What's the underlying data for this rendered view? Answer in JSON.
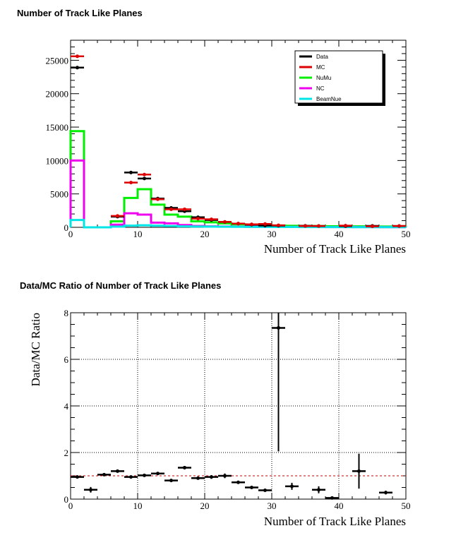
{
  "chart_data": [
    {
      "type": "histogram",
      "title": "Number of Track Like Planes",
      "xlabel": "Number of Track Like Planes",
      "ylabel": "",
      "xlim": [
        0,
        50
      ],
      "ylim": [
        0,
        28000
      ],
      "xticks": [
        0,
        10,
        20,
        30,
        40,
        50
      ],
      "yticks": [
        0,
        5000,
        10000,
        15000,
        20000,
        25000
      ],
      "grid": false,
      "legend_position": "top-right",
      "bin_width": 2,
      "step_series": [
        {
          "name": "NuMu",
          "color": "#00ee00",
          "values": [
            14400,
            0,
            0,
            900,
            4400,
            5700,
            3400,
            1900,
            1600,
            900,
            750,
            600,
            450,
            350,
            300,
            250,
            220,
            200,
            180,
            160,
            150,
            140,
            130,
            120,
            110
          ]
        },
        {
          "name": "NC",
          "color": "#ee00ee",
          "values": [
            10000,
            0,
            0,
            400,
            2100,
            1900,
            700,
            600,
            350,
            200,
            150,
            120,
            100,
            90,
            80,
            70,
            60,
            55,
            50,
            45,
            40,
            38,
            35,
            32,
            30
          ]
        },
        {
          "name": "BeamNue",
          "color": "#00e5e5",
          "values": [
            1100,
            0,
            0,
            100,
            250,
            300,
            250,
            200,
            150,
            120,
            100,
            90,
            80,
            70,
            60,
            55,
            50,
            45,
            40,
            38,
            35,
            32,
            30,
            28,
            26
          ]
        }
      ],
      "marker_series": [
        {
          "name": "Data",
          "color": "#000000",
          "values": [
            23900,
            0,
            0,
            1600,
            8200,
            7300,
            4300,
            2900,
            2400,
            1500,
            1100,
            800,
            550,
            400,
            260,
            250,
            0,
            220,
            200,
            0,
            180,
            0,
            210,
            0,
            200
          ],
          "errors": [
            160,
            0,
            0,
            40,
            90,
            85,
            65,
            55,
            50,
            40,
            33,
            28,
            24,
            20,
            16,
            16,
            0,
            15,
            14,
            0,
            13,
            0,
            14,
            0,
            14
          ]
        },
        {
          "name": "MC",
          "color": "#dd0000",
          "values": [
            25600,
            0,
            0,
            1700,
            6700,
            7900,
            4200,
            2700,
            2700,
            1300,
            1200,
            800,
            550,
            450,
            500,
            300,
            0,
            200,
            200,
            0,
            250,
            0,
            150,
            0,
            200
          ],
          "errors": [
            160,
            0,
            0,
            40,
            80,
            90,
            65,
            52,
            52,
            36,
            35,
            28,
            23,
            21,
            22,
            17,
            0,
            14,
            14,
            0,
            16,
            0,
            12,
            0,
            14
          ]
        }
      ],
      "legend": [
        "Data",
        "MC",
        "NuMu",
        "NC",
        "BeamNue"
      ],
      "legend_colors": [
        "#000000",
        "#dd0000",
        "#00ee00",
        "#ee00ee",
        "#00e5e5"
      ]
    },
    {
      "type": "scatter",
      "title": "Data/MC Ratio of Number of Track Like Planes",
      "xlabel": "Number of Track Like Planes",
      "ylabel": "Data/MC Ratio",
      "xlim": [
        0,
        50
      ],
      "ylim": [
        0,
        8
      ],
      "xticks": [
        0,
        10,
        20,
        30,
        40,
        50
      ],
      "yticks": [
        0,
        2,
        4,
        6,
        8
      ],
      "grid": true,
      "reference_line": 1,
      "reference_line_color": "#cc0000",
      "series": [
        {
          "name": "",
          "color": "#000000",
          "x": [
            1,
            3,
            5,
            7,
            9,
            11,
            13,
            15,
            17,
            19,
            21,
            23,
            25,
            27,
            29,
            31,
            33,
            37,
            39,
            43,
            47
          ],
          "y": [
            0.95,
            0.4,
            1.05,
            1.2,
            0.95,
            1.02,
            1.1,
            0.8,
            1.35,
            0.9,
            0.95,
            1.0,
            0.72,
            0.5,
            0.38,
            7.35,
            0.55,
            0.4,
            0.05,
            1.2,
            0.28
          ],
          "yerr": [
            0.02,
            0.12,
            0.03,
            0.03,
            0.03,
            0.03,
            0.04,
            0.03,
            0.07,
            0.04,
            0.08,
            0.1,
            0.07,
            0.06,
            0.05,
            5.3,
            0.15,
            0.15,
            0.05,
            0.75,
            0.08
          ]
        }
      ]
    }
  ]
}
